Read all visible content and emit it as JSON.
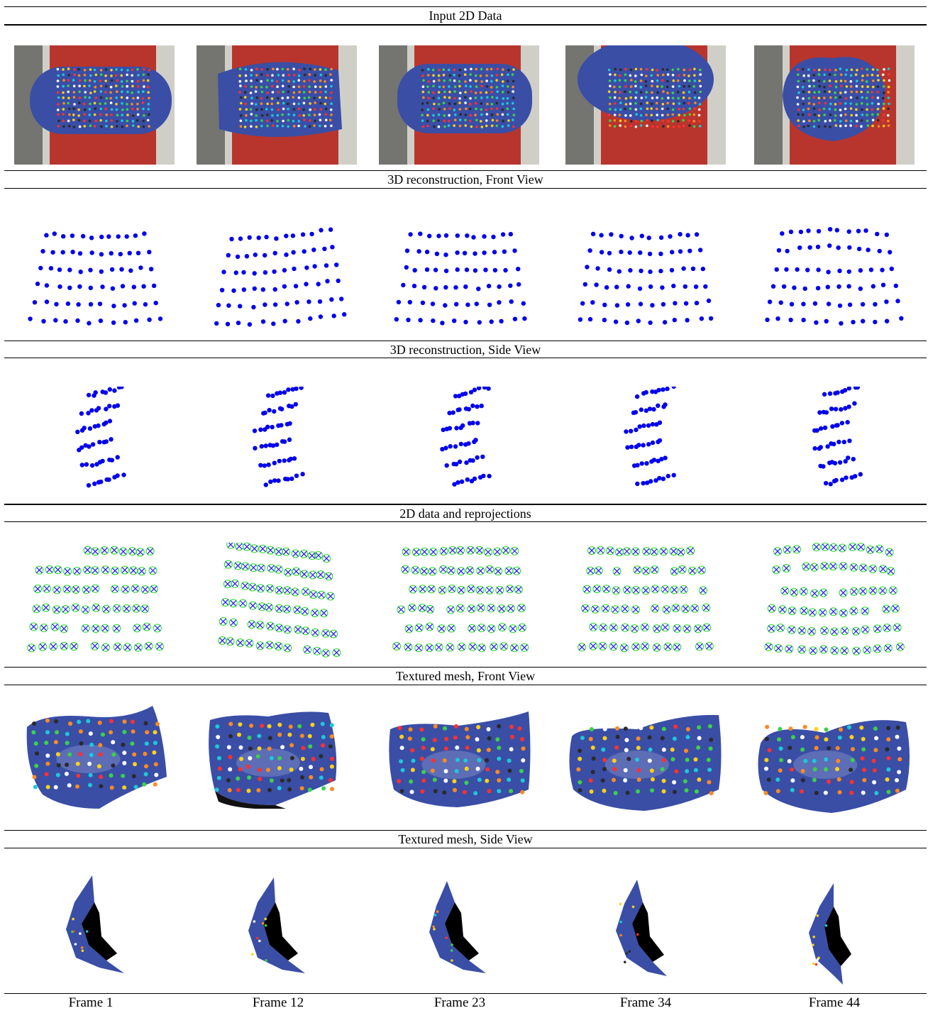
{
  "sections": {
    "input": "Input 2D Data",
    "front3d": "3D reconstruction, Front View",
    "side3d": "3D reconstruction, Side View",
    "reproj": "2D data and reprojections",
    "meshFront": "Textured mesh, Front View",
    "meshSide": "Textured mesh, Side View"
  },
  "frames": [
    "Frame 1",
    "Frame 12",
    "Frame 23",
    "Frame 34",
    "Frame 44"
  ],
  "colors": {
    "point": "#0000ee",
    "reproj_circle": "#22dd22",
    "reproj_cross": "#1a1aff",
    "fabric": "#3a4ea6",
    "shirt": "#b8352d",
    "background": "#cfcfc8"
  }
}
